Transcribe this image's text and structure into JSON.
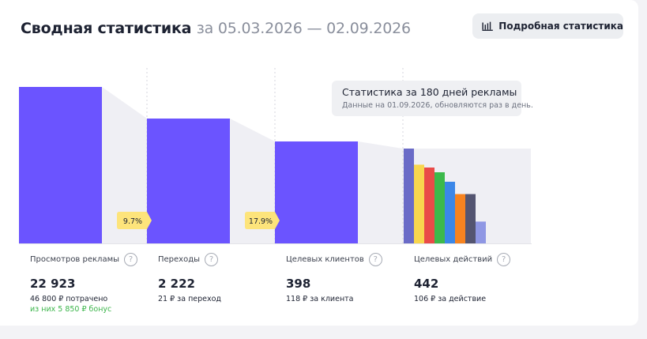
{
  "header": {
    "title": "Сводная статистика",
    "period": "за 05.03.2026 — 02.09.2026",
    "details_button": "Подробная статистика"
  },
  "tooltip": {
    "title": "Статистика за 180 дней рекламы",
    "subtitle": "Данные на 01.09.2026, обновляются раз в день."
  },
  "metrics": [
    {
      "label": "Просмотров рекламы",
      "value": "22 923",
      "sub": "46 800 ₽ потрачено",
      "bonus": "из них 5 850 ₽ бонус"
    },
    {
      "label": "Переходы",
      "value": "2 222",
      "sub": "21 ₽ за переход"
    },
    {
      "label": "Целевых клиентов",
      "value": "398",
      "sub": "118 ₽ за клиента"
    },
    {
      "label": "Целевых действий",
      "value": "442",
      "sub": "106 ₽ за действие"
    }
  ],
  "chart_data": {
    "type": "bar",
    "categories": [
      "Просмотров рекламы",
      "Переходы",
      "Целевых клиентов",
      "Целевых действий"
    ],
    "values": [
      22923,
      2222,
      398,
      442
    ],
    "conversion_labels": [
      "9.7%",
      "17.9%"
    ],
    "action_breakdown_relative": [
      1.0,
      0.83,
      0.8,
      0.75,
      0.65,
      0.52,
      0.52,
      0.23
    ],
    "action_breakdown_colors": [
      "#6a6bc7",
      "#f8d64e",
      "#e94b48",
      "#3cb94b",
      "#3b87e8",
      "#f7831f",
      "#545571",
      "#8f97e4"
    ],
    "colors": {
      "bar": "#6b54ff",
      "funnel": "#efeff4",
      "badge": "#fde47b"
    },
    "legend": "none"
  }
}
